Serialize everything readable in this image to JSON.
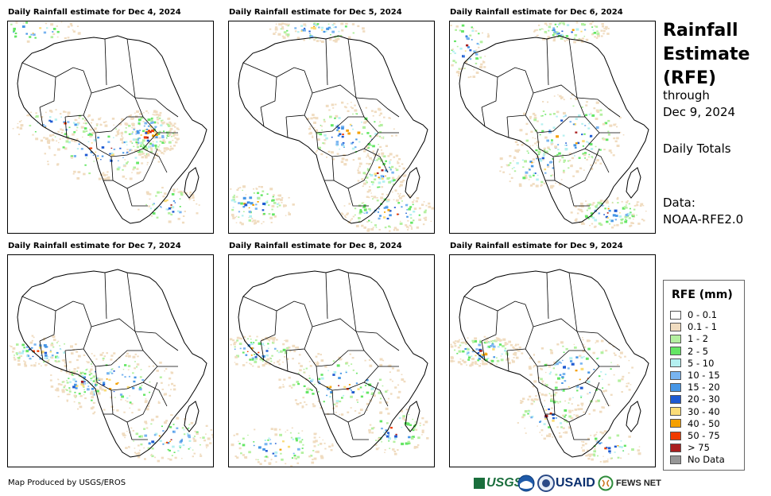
{
  "panels": [
    {
      "title": "Daily Rainfall estimate for Dec 4, 2024"
    },
    {
      "title": "Daily Rainfall estimate for Dec 5, 2024"
    },
    {
      "title": "Daily Rainfall estimate for Dec 6, 2024"
    },
    {
      "title": "Daily Rainfall estimate for Dec 7, 2024"
    },
    {
      "title": "Daily Rainfall estimate for Dec 8, 2024"
    },
    {
      "title": "Daily Rainfall estimate for Dec 9, 2024"
    }
  ],
  "side": {
    "title_line1": "Rainfall",
    "title_line2": "Estimate",
    "title_line3": "(RFE)",
    "through": "through",
    "date": "Dec 9, 2024",
    "daily": "Daily Totals",
    "data_label": "Data:",
    "data_source": "NOAA-RFE2.0"
  },
  "legend": {
    "title": "RFE (mm)",
    "items": [
      {
        "label": "0 - 0.1",
        "color": "#ffffff"
      },
      {
        "label": "0.1 - 1",
        "color": "#f0dcc0"
      },
      {
        "label": "1 - 2",
        "color": "#b4f0a0"
      },
      {
        "label": "2 - 5",
        "color": "#64e664"
      },
      {
        "label": "5 - 10",
        "color": "#b4f0f0"
      },
      {
        "label": "10 - 15",
        "color": "#78b4f0"
      },
      {
        "label": "15 - 20",
        "color": "#4696e6"
      },
      {
        "label": "20 - 30",
        "color": "#1e5ad2"
      },
      {
        "label": "30 - 40",
        "color": "#fadc78"
      },
      {
        "label": "40 - 50",
        "color": "#f5a000"
      },
      {
        "label": "50 - 75",
        "color": "#f03c00"
      },
      {
        "label": "> 75",
        "color": "#aa1e1e"
      },
      {
        "label": "No Data",
        "color": "#969696"
      }
    ]
  },
  "credit": "Map Produced by USGS/EROS",
  "logos": {
    "usgs": "USGS",
    "usaid": "USAID",
    "fewsnet": "FEWS NET"
  }
}
